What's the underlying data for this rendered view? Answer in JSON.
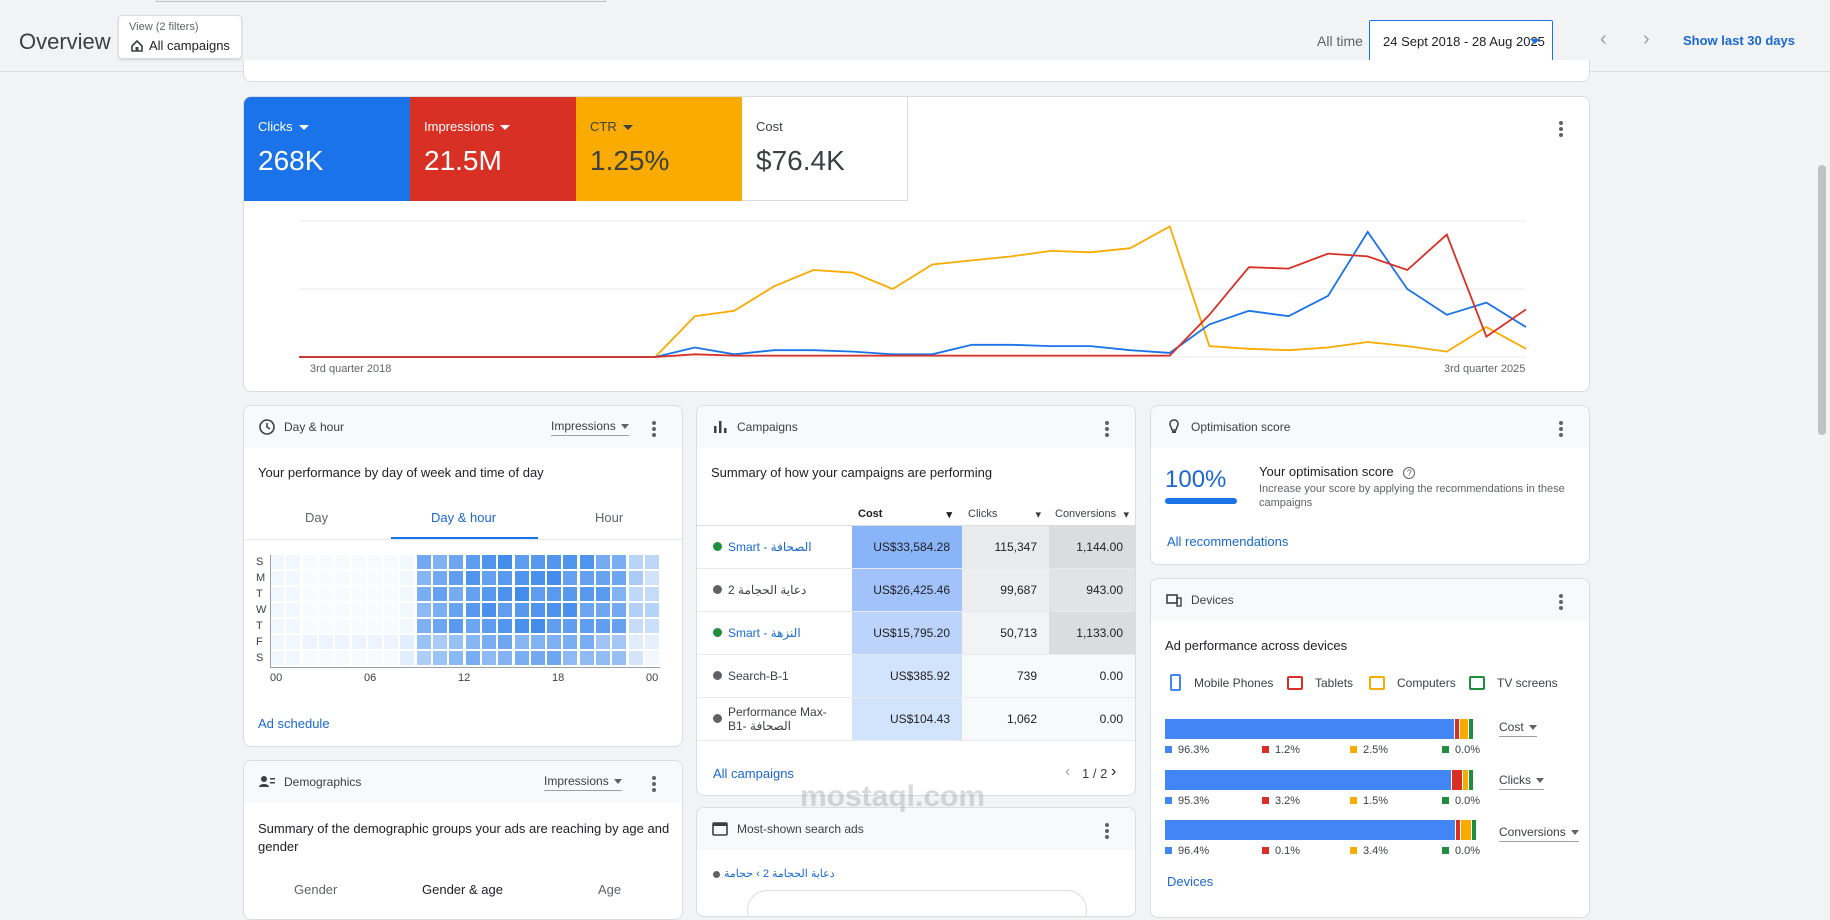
{
  "header": {
    "title": "Overview",
    "view_label": "View (2 filters)",
    "view_value": "All campaigns",
    "all_time": "All time",
    "date_range": "24 Sept 2018 - 28 Aug 2025",
    "show_last": "Show last 30 days"
  },
  "metrics": [
    {
      "label": "Clicks",
      "value": "268K",
      "color": "#1a73e8"
    },
    {
      "label": "Impressions",
      "value": "21.5M",
      "color": "#d93025"
    },
    {
      "label": "CTR",
      "value": "1.25%",
      "color": "#f9ab00"
    },
    {
      "label": "Cost",
      "value": "$76.4K",
      "color": "#ffffff"
    }
  ],
  "chart_data": {
    "type": "line",
    "xlabel_start": "3rd quarter 2018",
    "xlabel_end": "3rd quarter 2025",
    "ylim": [
      0,
      100
    ],
    "grid": true,
    "series": [
      {
        "color": "#f9ab00",
        "values": [
          0,
          0,
          0,
          0,
          0,
          0,
          0,
          0,
          0,
          0,
          30,
          34,
          52,
          64,
          62,
          50,
          68,
          71,
          74,
          78,
          77,
          80,
          96,
          8,
          6,
          5,
          7,
          11,
          8,
          4,
          22,
          6
        ]
      },
      {
        "color": "#1a73e8",
        "values": [
          0,
          0,
          0,
          0,
          0,
          0,
          0,
          0,
          0,
          0,
          7,
          2,
          5,
          5,
          4,
          2,
          2,
          9,
          9,
          8,
          8,
          5,
          3,
          24,
          34,
          30,
          45,
          92,
          50,
          31,
          40,
          22
        ]
      },
      {
        "color": "#d93025",
        "values": [
          0,
          0,
          0,
          0,
          0,
          0,
          0,
          0,
          0,
          0,
          2,
          1,
          1,
          1,
          1,
          1,
          1,
          1,
          1,
          1,
          1,
          1,
          1,
          31,
          66,
          65,
          76,
          74,
          64,
          90,
          15,
          35
        ]
      }
    ]
  },
  "dayhour": {
    "title": "Day & hour",
    "dropdown": "Impressions",
    "subtitle": "Your performance by day of week and time of day",
    "tabs": [
      "Day",
      "Day & hour",
      "Hour"
    ],
    "days": [
      "S",
      "M",
      "T",
      "W",
      "T",
      "F",
      "S"
    ],
    "hours": [
      "00",
      "06",
      "12",
      "18",
      "00"
    ],
    "link": "Ad schedule"
  },
  "demographics": {
    "title": "Demographics",
    "dropdown": "Impressions",
    "subtitle": "Summary of the demographic groups your ads are reaching by age and gender",
    "tabs": [
      "Gender",
      "Gender & age",
      "Age"
    ]
  },
  "campaigns": {
    "title": "Campaigns",
    "subtitle": "Summary of how your campaigns are performing",
    "columns": [
      "Cost",
      "Clicks",
      "Conversions"
    ],
    "rows": [
      {
        "name": "Smart - الصحافة",
        "dot": "#1e8e3e",
        "link": true,
        "cost": "US$33,584.28",
        "clicks": "115,347",
        "conv": "1,144.00",
        "costbg": "#8ab4f8",
        "clbg": "#e8eaed",
        "cvbg": "#dadce0"
      },
      {
        "name": "دعاية الحجامة 2",
        "dot": "#5f6368",
        "link": false,
        "cost": "US$26,425.46",
        "clicks": "99,687",
        "conv": "943.00",
        "costbg": "#a1c2fa",
        "clbg": "#eceef0",
        "cvbg": "#e2e3e5"
      },
      {
        "name": "Smart - النزهة",
        "dot": "#1e8e3e",
        "link": true,
        "cost": "US$15,795.20",
        "clicks": "50,713",
        "conv": "1,133.00",
        "costbg": "#bcd4fb",
        "clbg": "#f1f3f4",
        "cvbg": "#dadce0"
      },
      {
        "name": "Search-B-1",
        "dot": "#5f6368",
        "link": false,
        "cost": "US$385.92",
        "clicks": "739",
        "conv": "0.00",
        "costbg": "#d2e3fc",
        "clbg": "#f8f9fa",
        "cvbg": "#f8f9fa"
      },
      {
        "name": "Performance Max-B1- الصحافة",
        "dot": "#5f6368",
        "link": false,
        "cost": "US$104.43",
        "clicks": "1,062",
        "conv": "0.00",
        "costbg": "#d2e3fc",
        "clbg": "#f8f9fa",
        "cvbg": "#f8f9fa"
      }
    ],
    "link": "All campaigns",
    "pager": "1 / 2"
  },
  "searchads": {
    "title": "Most-shown search ads",
    "crumb": "دعاية الحجامة 2 › حجامة"
  },
  "optimisation": {
    "title": "Optimisation score",
    "score": "100%",
    "heading": "Your optimisation score",
    "desc": "Increase your score by applying the recommendations in these campaigns",
    "link": "All recommendations"
  },
  "devices": {
    "title": "Devices",
    "subtitle": "Ad performance across devices",
    "legend": [
      {
        "label": "Mobile Phones",
        "color": "#4285f4"
      },
      {
        "label": "Tablets",
        "color": "#d93025"
      },
      {
        "label": "Computers",
        "color": "#f9ab00"
      },
      {
        "label": "TV screens",
        "color": "#1e8e3e"
      }
    ],
    "rows": [
      {
        "metric": "Cost",
        "values": [
          96.3,
          1.2,
          2.5,
          0.0
        ],
        "labels": [
          "96.3%",
          "1.2%",
          "2.5%",
          "0.0%"
        ]
      },
      {
        "metric": "Clicks",
        "values": [
          95.3,
          3.2,
          1.5,
          0.0
        ],
        "labels": [
          "95.3%",
          "3.2%",
          "1.5%",
          "0.0%"
        ]
      },
      {
        "metric": "Conversions",
        "values": [
          96.4,
          0.1,
          3.4,
          0.0
        ],
        "labels": [
          "96.4%",
          "0.1%",
          "3.4%",
          "0.0%"
        ]
      }
    ],
    "link": "Devices"
  },
  "watermark": "mostaql.com"
}
